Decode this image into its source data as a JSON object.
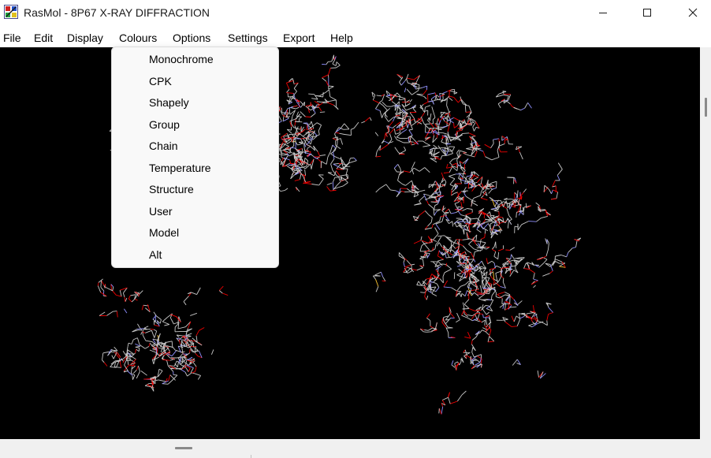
{
  "window": {
    "title": "RasMol - 8P67 X-RAY DIFFRACTION",
    "app_icon": "rasmol-app-icon",
    "controls": [
      "minimize-icon",
      "maximize-icon",
      "close-icon"
    ]
  },
  "menubar": {
    "items": [
      {
        "label": "File"
      },
      {
        "label": "Edit"
      },
      {
        "label": "Display"
      },
      {
        "label": "Colours"
      },
      {
        "label": "Options"
      },
      {
        "label": "Settings"
      },
      {
        "label": "Export"
      },
      {
        "label": "Help"
      }
    ],
    "open_menu": "Colours"
  },
  "colours_menu": {
    "items": [
      {
        "label": "Monochrome"
      },
      {
        "label": "CPK"
      },
      {
        "label": "Shapely"
      },
      {
        "label": "Group"
      },
      {
        "label": "Chain"
      },
      {
        "label": "Temperature"
      },
      {
        "label": "Structure"
      },
      {
        "label": "User"
      },
      {
        "label": "Model"
      },
      {
        "label": "Alt"
      }
    ]
  },
  "viewport": {
    "background": "#000000",
    "render_style": "wireframe",
    "atom_colors": [
      "#c8c8c8",
      "#f00000",
      "#8f8fff",
      "#ffc832"
    ]
  }
}
